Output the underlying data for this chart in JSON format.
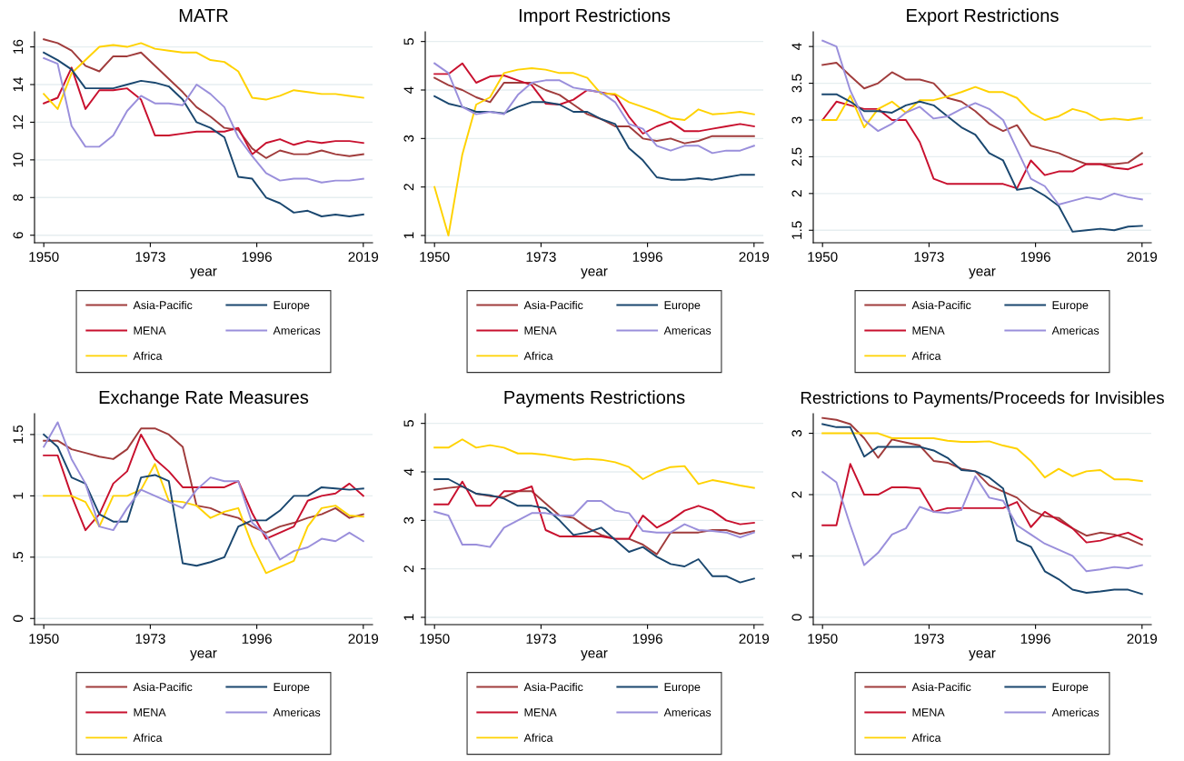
{
  "chart_data": [
    {
      "type": "line",
      "title": "MATR",
      "xlabel": "year",
      "xlim": [
        1948,
        2021
      ],
      "xticks": [
        1950,
        1973,
        1996,
        2019
      ],
      "ylim": [
        5.6,
        16.8
      ],
      "yticks": [
        6,
        8,
        10,
        12,
        14,
        16
      ],
      "grid": "y",
      "legend": "bottom",
      "x": [
        1950,
        1953,
        1956,
        1959,
        1962,
        1965,
        1968,
        1971,
        1974,
        1977,
        1980,
        1983,
        1986,
        1989,
        1992,
        1995,
        1998,
        2001,
        2004,
        2007,
        2010,
        2013,
        2016,
        2019
      ],
      "series": [
        {
          "name": "Asia-Pacific",
          "color": "#a03c3c",
          "values": [
            16.4,
            16.2,
            15.8,
            15.0,
            14.7,
            15.5,
            15.5,
            15.7,
            15.0,
            14.3,
            13.6,
            12.8,
            12.3,
            11.7,
            11.6,
            10.6,
            10.1,
            10.5,
            10.3,
            10.3,
            10.5,
            10.3,
            10.2,
            10.3
          ]
        },
        {
          "name": "MENA",
          "color": "#c8102e",
          "values": [
            13.0,
            13.3,
            14.9,
            12.7,
            13.7,
            13.7,
            13.8,
            13.2,
            11.3,
            11.3,
            11.4,
            11.5,
            11.5,
            11.5,
            11.7,
            10.3,
            10.9,
            11.1,
            10.8,
            11.0,
            10.9,
            11.0,
            11.0,
            10.9
          ]
        },
        {
          "name": "Africa",
          "color": "#ffd200",
          "values": [
            13.5,
            12.7,
            14.6,
            15.3,
            16.0,
            16.1,
            16.0,
            16.2,
            15.9,
            15.8,
            15.7,
            15.7,
            15.3,
            15.2,
            14.7,
            13.3,
            13.2,
            13.4,
            13.7,
            13.6,
            13.5,
            13.5,
            13.4,
            13.3
          ]
        },
        {
          "name": "Europe",
          "color": "#1a476f",
          "values": [
            15.7,
            15.3,
            14.8,
            13.8,
            13.8,
            13.8,
            14.0,
            14.2,
            14.1,
            13.9,
            13.2,
            12.0,
            11.7,
            11.2,
            9.1,
            9.0,
            8.0,
            7.7,
            7.2,
            7.3,
            7.0,
            7.1,
            7.0,
            7.1
          ]
        },
        {
          "name": "Americas",
          "color": "#9a8fdb",
          "values": [
            15.4,
            15.1,
            11.8,
            10.7,
            10.7,
            11.3,
            12.6,
            13.4,
            13.0,
            13.0,
            12.9,
            14.0,
            13.5,
            12.8,
            11.2,
            10.2,
            9.3,
            8.9,
            9.0,
            9.0,
            8.8,
            8.9,
            8.9,
            9.0
          ]
        }
      ]
    },
    {
      "type": "line",
      "title": "Import Restrictions",
      "xlabel": "year",
      "xlim": [
        1948,
        2021
      ],
      "xticks": [
        1950,
        1973,
        1996,
        2019
      ],
      "ylim": [
        0.85,
        5.2
      ],
      "yticks": [
        1,
        2,
        3,
        4,
        5
      ],
      "grid": "y",
      "legend": "bottom",
      "x": [
        1950,
        1953,
        1956,
        1959,
        1962,
        1965,
        1968,
        1971,
        1974,
        1977,
        1980,
        1983,
        1986,
        1989,
        1992,
        1995,
        1998,
        2001,
        2004,
        2007,
        2010,
        2013,
        2016,
        2019
      ],
      "series": [
        {
          "name": "Asia-Pacific",
          "color": "#a03c3c",
          "values": [
            4.25,
            4.1,
            4.0,
            3.85,
            3.75,
            4.15,
            4.15,
            4.15,
            4.0,
            3.9,
            3.7,
            3.5,
            3.4,
            3.25,
            3.25,
            3.0,
            2.95,
            3.0,
            2.9,
            2.95,
            3.05,
            3.05,
            3.05,
            3.05
          ]
        },
        {
          "name": "MENA",
          "color": "#c8102e",
          "values": [
            4.33,
            4.33,
            4.55,
            4.15,
            4.28,
            4.3,
            4.2,
            4.1,
            3.72,
            3.7,
            3.8,
            4.0,
            3.95,
            3.9,
            3.45,
            3.1,
            3.25,
            3.35,
            3.15,
            3.15,
            3.2,
            3.25,
            3.3,
            3.25
          ]
        },
        {
          "name": "Africa",
          "color": "#ffd200",
          "values": [
            2.0,
            1.0,
            2.67,
            3.7,
            3.85,
            4.35,
            4.42,
            4.45,
            4.42,
            4.35,
            4.35,
            4.25,
            3.92,
            3.92,
            3.75,
            3.65,
            3.55,
            3.42,
            3.38,
            3.6,
            3.5,
            3.52,
            3.55,
            3.5
          ]
        },
        {
          "name": "Europe",
          "color": "#1a476f",
          "values": [
            3.87,
            3.72,
            3.65,
            3.55,
            3.55,
            3.52,
            3.65,
            3.75,
            3.75,
            3.7,
            3.55,
            3.55,
            3.4,
            3.3,
            2.8,
            2.55,
            2.2,
            2.15,
            2.15,
            2.18,
            2.15,
            2.2,
            2.25,
            2.25
          ]
        },
        {
          "name": "Americas",
          "color": "#9a8fdb",
          "values": [
            4.55,
            4.35,
            3.65,
            3.5,
            3.55,
            3.5,
            3.9,
            4.15,
            4.2,
            4.2,
            4.05,
            4.0,
            3.95,
            3.75,
            3.3,
            3.2,
            2.85,
            2.75,
            2.85,
            2.85,
            2.7,
            2.75,
            2.75,
            2.85
          ]
        }
      ]
    },
    {
      "type": "line",
      "title": "Export Restrictions",
      "xlabel": "year",
      "xlim": [
        1948,
        2021
      ],
      "xticks": [
        1950,
        1973,
        1996,
        2019
      ],
      "ylim": [
        1.33,
        4.2
      ],
      "yticks": [
        1.5,
        2,
        2.5,
        3,
        3.5,
        4
      ],
      "grid": "y",
      "legend": "bottom",
      "x": [
        1950,
        1953,
        1956,
        1959,
        1962,
        1965,
        1968,
        1971,
        1974,
        1977,
        1980,
        1983,
        1986,
        1989,
        1992,
        1995,
        1998,
        2001,
        2004,
        2007,
        2010,
        2013,
        2016,
        2019
      ],
      "series": [
        {
          "name": "Asia-Pacific",
          "color": "#a03c3c",
          "values": [
            3.75,
            3.78,
            3.6,
            3.43,
            3.5,
            3.65,
            3.55,
            3.55,
            3.5,
            3.3,
            3.25,
            3.12,
            2.95,
            2.85,
            2.93,
            2.65,
            2.6,
            2.55,
            2.47,
            2.4,
            2.4,
            2.4,
            2.42,
            2.55
          ]
        },
        {
          "name": "MENA",
          "color": "#c8102e",
          "values": [
            3.0,
            3.25,
            3.2,
            3.15,
            3.15,
            3.0,
            3.0,
            2.7,
            2.2,
            2.13,
            2.13,
            2.13,
            2.13,
            2.13,
            2.07,
            2.45,
            2.25,
            2.3,
            2.3,
            2.4,
            2.4,
            2.35,
            2.33,
            2.4
          ]
        },
        {
          "name": "Africa",
          "color": "#ffd200",
          "values": [
            3.0,
            3.0,
            3.33,
            2.9,
            3.15,
            3.25,
            3.1,
            3.27,
            3.27,
            3.32,
            3.38,
            3.45,
            3.38,
            3.38,
            3.3,
            3.1,
            3.0,
            3.05,
            3.15,
            3.1,
            3.0,
            3.02,
            3.0,
            3.03
          ]
        },
        {
          "name": "Europe",
          "color": "#1a476f",
          "values": [
            3.35,
            3.35,
            3.25,
            3.12,
            3.12,
            3.1,
            3.2,
            3.25,
            3.2,
            3.05,
            2.9,
            2.8,
            2.55,
            2.45,
            2.05,
            2.08,
            1.97,
            1.83,
            1.48,
            1.5,
            1.52,
            1.5,
            1.55,
            1.56
          ]
        },
        {
          "name": "Americas",
          "color": "#9a8fdb",
          "values": [
            4.08,
            4.0,
            3.4,
            3.0,
            2.85,
            2.95,
            3.1,
            3.18,
            3.02,
            3.05,
            3.15,
            3.23,
            3.15,
            3.0,
            2.6,
            2.2,
            2.1,
            1.85,
            1.9,
            1.95,
            1.92,
            2.0,
            1.95,
            1.92
          ]
        }
      ]
    },
    {
      "type": "line",
      "title": "Exchange Rate Measures",
      "xlabel": "year",
      "xlim": [
        1948,
        2021
      ],
      "xticks": [
        1950,
        1973,
        1996,
        2019
      ],
      "ylim": [
        -0.05,
        1.67
      ],
      "yticks": [
        0,
        {
          "value": 0.5,
          "label": ".5"
        },
        1,
        1.5
      ],
      "grid": "y",
      "legend": "bottom",
      "x": [
        1950,
        1953,
        1956,
        1959,
        1962,
        1965,
        1968,
        1971,
        1974,
        1977,
        1980,
        1983,
        1986,
        1989,
        1992,
        1995,
        1998,
        2001,
        2004,
        2007,
        2010,
        2013,
        2016,
        2019
      ],
      "series": [
        {
          "name": "Asia-Pacific",
          "color": "#a03c3c",
          "values": [
            1.45,
            1.45,
            1.38,
            1.35,
            1.32,
            1.3,
            1.38,
            1.55,
            1.55,
            1.5,
            1.4,
            0.92,
            0.9,
            0.85,
            0.82,
            0.75,
            0.7,
            0.75,
            0.78,
            0.82,
            0.85,
            0.9,
            0.82,
            0.85
          ]
        },
        {
          "name": "MENA",
          "color": "#c8102e",
          "values": [
            1.33,
            1.33,
            1.0,
            0.72,
            0.85,
            1.1,
            1.2,
            1.5,
            1.3,
            1.2,
            1.07,
            1.07,
            1.07,
            1.07,
            1.12,
            0.86,
            0.65,
            0.7,
            0.75,
            0.96,
            1.0,
            1.02,
            1.1,
            1.0
          ]
        },
        {
          "name": "Africa",
          "color": "#ffd200",
          "values": [
            1.0,
            1.0,
            1.0,
            0.95,
            0.75,
            1.0,
            1.0,
            1.05,
            1.26,
            0.96,
            0.95,
            0.92,
            0.82,
            0.87,
            0.9,
            0.6,
            0.37,
            0.42,
            0.47,
            0.75,
            0.9,
            0.92,
            0.84,
            0.83
          ]
        },
        {
          "name": "Europe",
          "color": "#1a476f",
          "values": [
            1.5,
            1.4,
            1.15,
            1.1,
            0.85,
            0.79,
            0.79,
            1.15,
            1.17,
            1.12,
            0.45,
            0.43,
            0.46,
            0.5,
            0.75,
            0.8,
            0.8,
            0.88,
            1.0,
            1.0,
            1.07,
            1.06,
            1.05,
            1.06
          ]
        },
        {
          "name": "Americas",
          "color": "#9a8fdb",
          "values": [
            1.4,
            1.6,
            1.3,
            1.1,
            0.75,
            0.72,
            0.9,
            1.05,
            1.0,
            0.95,
            0.9,
            1.05,
            1.15,
            1.12,
            1.12,
            0.78,
            0.68,
            0.48,
            0.55,
            0.58,
            0.65,
            0.63,
            0.7,
            0.63
          ]
        }
      ]
    },
    {
      "type": "line",
      "title": "Payments Restrictions",
      "xlabel": "year",
      "xlim": [
        1948,
        2021
      ],
      "xticks": [
        1950,
        1973,
        1996,
        2019
      ],
      "ylim": [
        0.85,
        5.2
      ],
      "yticks": [
        1,
        2,
        3,
        4,
        5
      ],
      "grid": "y",
      "legend": "bottom",
      "x": [
        1950,
        1953,
        1956,
        1959,
        1962,
        1965,
        1968,
        1971,
        1974,
        1977,
        1980,
        1983,
        1986,
        1989,
        1992,
        1995,
        1998,
        2001,
        2004,
        2007,
        2010,
        2013,
        2016,
        2019
      ],
      "series": [
        {
          "name": "Asia-Pacific",
          "color": "#a03c3c",
          "values": [
            3.63,
            3.67,
            3.7,
            3.55,
            3.5,
            3.48,
            3.6,
            3.6,
            3.35,
            3.1,
            3.05,
            2.85,
            2.7,
            2.62,
            2.62,
            2.5,
            2.3,
            2.75,
            2.75,
            2.75,
            2.8,
            2.8,
            2.72,
            2.78
          ]
        },
        {
          "name": "MENA",
          "color": "#c8102e",
          "values": [
            3.33,
            3.33,
            3.8,
            3.3,
            3.3,
            3.6,
            3.6,
            3.7,
            2.8,
            2.67,
            2.67,
            2.67,
            2.67,
            2.62,
            2.62,
            3.1,
            2.85,
            3.0,
            3.2,
            3.3,
            3.2,
            3.0,
            2.92,
            2.95
          ]
        },
        {
          "name": "Africa",
          "color": "#ffd200",
          "values": [
            4.5,
            4.5,
            4.67,
            4.5,
            4.55,
            4.5,
            4.38,
            4.38,
            4.35,
            4.3,
            4.25,
            4.27,
            4.25,
            4.2,
            4.1,
            3.85,
            4.0,
            4.1,
            4.12,
            3.75,
            3.83,
            3.78,
            3.72,
            3.67
          ]
        },
        {
          "name": "Europe",
          "color": "#1a476f",
          "values": [
            3.85,
            3.85,
            3.7,
            3.55,
            3.52,
            3.45,
            3.3,
            3.3,
            3.25,
            3.0,
            2.7,
            2.75,
            2.85,
            2.6,
            2.35,
            2.45,
            2.25,
            2.1,
            2.05,
            2.2,
            1.85,
            1.85,
            1.72,
            1.8
          ]
        },
        {
          "name": "Americas",
          "color": "#9a8fdb",
          "values": [
            3.18,
            3.1,
            2.5,
            2.5,
            2.45,
            2.85,
            3.0,
            3.15,
            3.15,
            3.1,
            3.1,
            3.4,
            3.4,
            3.2,
            3.15,
            2.78,
            2.75,
            2.75,
            2.92,
            2.8,
            2.78,
            2.75,
            2.65,
            2.75
          ]
        }
      ]
    },
    {
      "type": "line",
      "title": "Restrictions to Payments/Proceeds for Invisibles",
      "xlabel": "year",
      "xlim": [
        1948,
        2021
      ],
      "xticks": [
        1950,
        1973,
        1996,
        2019
      ],
      "ylim": [
        -0.12,
        3.32
      ],
      "yticks": [
        0,
        1,
        2,
        3
      ],
      "grid": "y",
      "legend": "bottom",
      "x": [
        1950,
        1953,
        1956,
        1959,
        1962,
        1965,
        1968,
        1971,
        1974,
        1977,
        1980,
        1983,
        1986,
        1989,
        1992,
        1995,
        1998,
        2001,
        2004,
        2007,
        2010,
        2013,
        2016,
        2019
      ],
      "series": [
        {
          "name": "Asia-Pacific",
          "color": "#a03c3c",
          "values": [
            3.25,
            3.22,
            3.15,
            2.92,
            2.6,
            2.9,
            2.85,
            2.8,
            2.55,
            2.52,
            2.42,
            2.38,
            2.15,
            2.05,
            1.95,
            1.75,
            1.65,
            1.62,
            1.45,
            1.33,
            1.38,
            1.35,
            1.28,
            1.18
          ]
        },
        {
          "name": "MENA",
          "color": "#c8102e",
          "values": [
            1.5,
            1.5,
            2.5,
            2.0,
            2.0,
            2.12,
            2.12,
            2.1,
            1.72,
            1.78,
            1.78,
            1.78,
            1.78,
            1.78,
            1.88,
            1.47,
            1.72,
            1.58,
            1.45,
            1.22,
            1.25,
            1.32,
            1.38,
            1.27
          ]
        },
        {
          "name": "Africa",
          "color": "#ffd200",
          "values": [
            3.0,
            3.0,
            3.0,
            3.0,
            3.0,
            2.92,
            2.92,
            2.92,
            2.92,
            2.88,
            2.86,
            2.86,
            2.87,
            2.8,
            2.75,
            2.55,
            2.28,
            2.42,
            2.3,
            2.38,
            2.4,
            2.25,
            2.25,
            2.22
          ]
        },
        {
          "name": "Europe",
          "color": "#1a476f",
          "values": [
            3.15,
            3.1,
            3.1,
            2.62,
            2.78,
            2.78,
            2.78,
            2.78,
            2.72,
            2.6,
            2.4,
            2.38,
            2.28,
            2.1,
            1.25,
            1.15,
            0.75,
            0.62,
            0.45,
            0.4,
            0.42,
            0.45,
            0.45,
            0.38
          ]
        },
        {
          "name": "Americas",
          "color": "#9a8fdb",
          "values": [
            2.37,
            2.2,
            1.5,
            0.85,
            1.05,
            1.35,
            1.45,
            1.8,
            1.72,
            1.7,
            1.75,
            2.3,
            1.95,
            1.9,
            1.5,
            1.35,
            1.2,
            1.1,
            1.0,
            0.75,
            0.78,
            0.82,
            0.8,
            0.85
          ]
        }
      ]
    }
  ]
}
